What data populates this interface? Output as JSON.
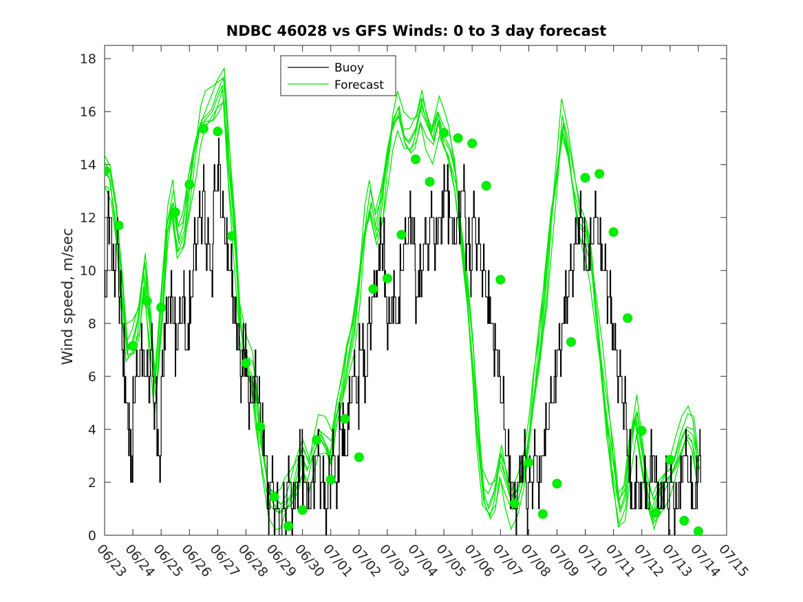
{
  "chart_data": {
    "type": "line",
    "title": "NDBC 46028 vs GFS Winds: 0 to 3 day forecast",
    "ylabel": "Wind speed, m/sec",
    "xlabel": "",
    "ylim": [
      0,
      18.5
    ],
    "yticks": [
      0,
      2,
      4,
      6,
      8,
      10,
      12,
      14,
      16,
      18
    ],
    "xticks": [
      "06/23",
      "06/24",
      "06/25",
      "06/26",
      "06/27",
      "06/28",
      "06/29",
      "06/30",
      "07/01",
      "07/02",
      "07/03",
      "07/04",
      "07/05",
      "07/06",
      "07/07",
      "07/08",
      "07/09",
      "07/10",
      "07/11",
      "07/12",
      "07/13",
      "07/14",
      "07/15"
    ],
    "x_unit": "days since 06/23 00:00",
    "legend": {
      "position": "top-center",
      "entries": [
        {
          "label": "Buoy",
          "color": "#000000"
        },
        {
          "label": "Forecast",
          "color": "#00e600"
        }
      ]
    },
    "colors": {
      "buoy": "#000000",
      "forecast": "#00e600",
      "analysis_marker": "#00ee00"
    },
    "series": [
      {
        "name": "Buoy",
        "style": "step-line",
        "points": [
          [
            0,
            9
          ],
          [
            0.1,
            12
          ],
          [
            0.25,
            10
          ],
          [
            0.4,
            11
          ],
          [
            0.5,
            9
          ],
          [
            0.6,
            7
          ],
          [
            0.7,
            5
          ],
          [
            0.85,
            4
          ],
          [
            0.9,
            3
          ],
          [
            0.95,
            2
          ],
          [
            1,
            5
          ],
          [
            1.1,
            6
          ],
          [
            1.25,
            7
          ],
          [
            1.4,
            6
          ],
          [
            1.6,
            7
          ],
          [
            1.7,
            5
          ],
          [
            1.85,
            3
          ],
          [
            2,
            6
          ],
          [
            2.1,
            8
          ],
          [
            2.25,
            9
          ],
          [
            2.4,
            8
          ],
          [
            2.5,
            7
          ],
          [
            2.6,
            8
          ],
          [
            2.75,
            9
          ],
          [
            2.85,
            7
          ],
          [
            3,
            9
          ],
          [
            3.15,
            11
          ],
          [
            3.3,
            12
          ],
          [
            3.45,
            13
          ],
          [
            3.55,
            11
          ],
          [
            3.7,
            10
          ],
          [
            3.85,
            13
          ],
          [
            4,
            14
          ],
          [
            4.1,
            12
          ],
          [
            4.25,
            11
          ],
          [
            4.35,
            10
          ],
          [
            4.5,
            9
          ],
          [
            4.6,
            8
          ],
          [
            4.7,
            7
          ],
          [
            4.8,
            6
          ],
          [
            4.9,
            7
          ],
          [
            5,
            6
          ],
          [
            5.1,
            5
          ],
          [
            5.25,
            6
          ],
          [
            5.4,
            5
          ],
          [
            5.5,
            4
          ],
          [
            5.6,
            3
          ],
          [
            5.75,
            1
          ],
          [
            5.85,
            2
          ],
          [
            6,
            1
          ],
          [
            6.15,
            0
          ],
          [
            6.3,
            1
          ],
          [
            6.45,
            2
          ],
          [
            6.6,
            1
          ],
          [
            6.75,
            2
          ],
          [
            6.9,
            3
          ],
          [
            7,
            2
          ],
          [
            7.15,
            1
          ],
          [
            7.3,
            2
          ],
          [
            7.45,
            3
          ],
          [
            7.6,
            2
          ],
          [
            7.75,
            1
          ],
          [
            7.9,
            2
          ],
          [
            8,
            3
          ],
          [
            8.15,
            2
          ],
          [
            8.3,
            4
          ],
          [
            8.45,
            3
          ],
          [
            8.6,
            5
          ],
          [
            8.75,
            6
          ],
          [
            8.9,
            5
          ],
          [
            9,
            7
          ],
          [
            9.15,
            6
          ],
          [
            9.3,
            8
          ],
          [
            9.45,
            9
          ],
          [
            9.6,
            10
          ],
          [
            9.75,
            11
          ],
          [
            9.9,
            9
          ],
          [
            10,
            8
          ],
          [
            10.15,
            9
          ],
          [
            10.3,
            8
          ],
          [
            10.45,
            10
          ],
          [
            10.6,
            11
          ],
          [
            10.75,
            12
          ],
          [
            10.9,
            11
          ],
          [
            11,
            9
          ],
          [
            11.15,
            10
          ],
          [
            11.3,
            11
          ],
          [
            11.5,
            12
          ],
          [
            11.65,
            11
          ],
          [
            11.8,
            12
          ],
          [
            12,
            13
          ],
          [
            12.15,
            12
          ],
          [
            12.3,
            11
          ],
          [
            12.45,
            12
          ],
          [
            12.6,
            13
          ],
          [
            12.75,
            11
          ],
          [
            12.9,
            10
          ],
          [
            13,
            12
          ],
          [
            13.15,
            11
          ],
          [
            13.3,
            10
          ],
          [
            13.45,
            9
          ],
          [
            13.6,
            8
          ],
          [
            13.75,
            7
          ],
          [
            13.9,
            6
          ],
          [
            14,
            5
          ],
          [
            14.15,
            3
          ],
          [
            14.3,
            2
          ],
          [
            14.45,
            1
          ],
          [
            14.6,
            2
          ],
          [
            14.75,
            3
          ],
          [
            14.9,
            1
          ],
          [
            15,
            2
          ],
          [
            15.15,
            3
          ],
          [
            15.3,
            2
          ],
          [
            15.45,
            3
          ],
          [
            15.6,
            4
          ],
          [
            15.75,
            5
          ],
          [
            15.9,
            6
          ],
          [
            16,
            7
          ],
          [
            16.15,
            8
          ],
          [
            16.3,
            9
          ],
          [
            16.45,
            10
          ],
          [
            16.6,
            11
          ],
          [
            16.75,
            12
          ],
          [
            16.9,
            11
          ],
          [
            17,
            10
          ],
          [
            17.15,
            11
          ],
          [
            17.3,
            12
          ],
          [
            17.45,
            11
          ],
          [
            17.6,
            10
          ],
          [
            17.75,
            9
          ],
          [
            17.9,
            8
          ],
          [
            18,
            7
          ],
          [
            18.15,
            6
          ],
          [
            18.3,
            5
          ],
          [
            18.45,
            3
          ],
          [
            18.6,
            1
          ],
          [
            18.75,
            2
          ],
          [
            18.9,
            1
          ],
          [
            19,
            2
          ],
          [
            19.15,
            1
          ],
          [
            19.3,
            3
          ],
          [
            19.45,
            2
          ],
          [
            19.6,
            1
          ],
          [
            19.75,
            2
          ],
          [
            19.9,
            1
          ],
          [
            20,
            2
          ],
          [
            20.15,
            1
          ],
          [
            20.3,
            2
          ],
          [
            20.45,
            3
          ],
          [
            20.6,
            2
          ],
          [
            20.75,
            1
          ],
          [
            20.9,
            2
          ],
          [
            21,
            3
          ]
        ]
      },
      {
        "name": "Forecast",
        "style": "line",
        "points": [
          [
            0,
            13.8
          ],
          [
            0.2,
            13.5
          ],
          [
            0.4,
            12
          ],
          [
            0.6,
            9.5
          ],
          [
            0.8,
            7
          ],
          [
            1,
            7.2
          ],
          [
            1.2,
            8
          ],
          [
            1.4,
            10
          ],
          [
            1.6,
            8
          ],
          [
            1.8,
            5.5
          ],
          [
            2,
            8.5
          ],
          [
            2.2,
            11.5
          ],
          [
            2.4,
            12.5
          ],
          [
            2.6,
            11
          ],
          [
            2.8,
            11.5
          ],
          [
            3,
            13.2
          ],
          [
            3.2,
            14.5
          ],
          [
            3.4,
            15.5
          ],
          [
            3.6,
            15.8
          ],
          [
            3.8,
            16
          ],
          [
            4,
            16.5
          ],
          [
            4.2,
            17
          ],
          [
            4.4,
            14
          ],
          [
            4.6,
            11.5
          ],
          [
            4.8,
            8
          ],
          [
            5,
            6.5
          ],
          [
            5.2,
            6
          ],
          [
            5.4,
            4.5
          ],
          [
            5.6,
            3
          ],
          [
            5.8,
            1.6
          ],
          [
            6,
            1.2
          ],
          [
            6.2,
            1
          ],
          [
            6.4,
            1.2
          ],
          [
            6.6,
            1.5
          ],
          [
            6.8,
            2.2
          ],
          [
            7,
            3
          ],
          [
            7.2,
            2.5
          ],
          [
            7.4,
            3.2
          ],
          [
            7.6,
            3.8
          ],
          [
            7.8,
            3.5
          ],
          [
            8,
            3
          ],
          [
            8.2,
            4.5
          ],
          [
            8.4,
            5.5
          ],
          [
            8.6,
            6.8
          ],
          [
            8.8,
            7.8
          ],
          [
            9,
            9.5
          ],
          [
            9.2,
            11.5
          ],
          [
            9.4,
            12.5
          ],
          [
            9.6,
            11.5
          ],
          [
            9.8,
            12.5
          ],
          [
            10,
            14.2
          ],
          [
            10.2,
            15.5
          ],
          [
            10.4,
            16
          ],
          [
            10.6,
            15
          ],
          [
            10.8,
            14.8
          ],
          [
            11,
            15.2
          ],
          [
            11.2,
            16.2
          ],
          [
            11.4,
            15.5
          ],
          [
            11.6,
            15
          ],
          [
            11.8,
            15.8
          ],
          [
            12,
            15
          ],
          [
            12.2,
            14.5
          ],
          [
            12.4,
            13.5
          ],
          [
            12.6,
            11.5
          ],
          [
            12.8,
            9.5
          ],
          [
            13,
            7
          ],
          [
            13.2,
            4
          ],
          [
            13.4,
            1.5
          ],
          [
            13.6,
            1
          ],
          [
            13.8,
            1.5
          ],
          [
            14,
            2.8
          ],
          [
            14.2,
            2
          ],
          [
            14.4,
            1.2
          ],
          [
            14.6,
            1.5
          ],
          [
            14.8,
            2.2
          ],
          [
            15,
            3.5
          ],
          [
            15.2,
            5.5
          ],
          [
            15.4,
            7.3
          ],
          [
            15.6,
            9.5
          ],
          [
            15.8,
            12
          ],
          [
            16,
            13.6
          ],
          [
            16.2,
            15.5
          ],
          [
            16.4,
            14.5
          ],
          [
            16.6,
            13
          ],
          [
            16.8,
            11.8
          ],
          [
            17,
            11.5
          ],
          [
            17.2,
            10.5
          ],
          [
            17.4,
            8.2
          ],
          [
            17.6,
            6
          ],
          [
            17.8,
            4
          ],
          [
            18,
            2.5
          ],
          [
            18.2,
            1
          ],
          [
            18.4,
            1.5
          ],
          [
            18.6,
            3.5
          ],
          [
            18.8,
            4.5
          ],
          [
            19,
            3
          ],
          [
            19.2,
            1.5
          ],
          [
            19.4,
            0.8
          ],
          [
            19.6,
            1.5
          ],
          [
            19.8,
            2
          ],
          [
            20,
            2.3
          ],
          [
            20.2,
            2.8
          ],
          [
            20.4,
            3.5
          ],
          [
            20.6,
            4
          ],
          [
            20.8,
            3.8
          ],
          [
            21,
            2.5
          ]
        ]
      },
      {
        "name": "Analysis points",
        "style": "markers",
        "points": [
          [
            0,
            13.75
          ],
          [
            0.5,
            11.7
          ],
          [
            1,
            7.15
          ],
          [
            1.5,
            8.85
          ],
          [
            2,
            8.6
          ],
          [
            2.5,
            12.2
          ],
          [
            3,
            13.25
          ],
          [
            3.5,
            15.35
          ],
          [
            4,
            15.25
          ],
          [
            4.5,
            11.3
          ],
          [
            5,
            6.5
          ],
          [
            5.5,
            4.1
          ],
          [
            6,
            1.45
          ],
          [
            6.5,
            0.35
          ],
          [
            7,
            0.95
          ],
          [
            7.5,
            3.6
          ],
          [
            8,
            2.1
          ],
          [
            8.5,
            4.4
          ],
          [
            9,
            2.95
          ],
          [
            9.5,
            9.3
          ],
          [
            10,
            9.7
          ],
          [
            10.5,
            11.35
          ],
          [
            11,
            14.2
          ],
          [
            11.5,
            13.35
          ],
          [
            12,
            15.2
          ],
          [
            12.5,
            15
          ],
          [
            13,
            14.8
          ],
          [
            13.5,
            13.2
          ],
          [
            14,
            9.65
          ],
          [
            14.5,
            1.2
          ],
          [
            15,
            2.75
          ],
          [
            15.5,
            0.8
          ],
          [
            16,
            1.95
          ],
          [
            16.5,
            7.3
          ],
          [
            17,
            13.5
          ],
          [
            17.5,
            13.65
          ],
          [
            18,
            11.45
          ],
          [
            18.5,
            8.2
          ],
          [
            19,
            3.95
          ],
          [
            19.5,
            0.85
          ],
          [
            20,
            2.85
          ],
          [
            20.5,
            0.55
          ],
          [
            21,
            0.15
          ]
        ]
      }
    ]
  }
}
